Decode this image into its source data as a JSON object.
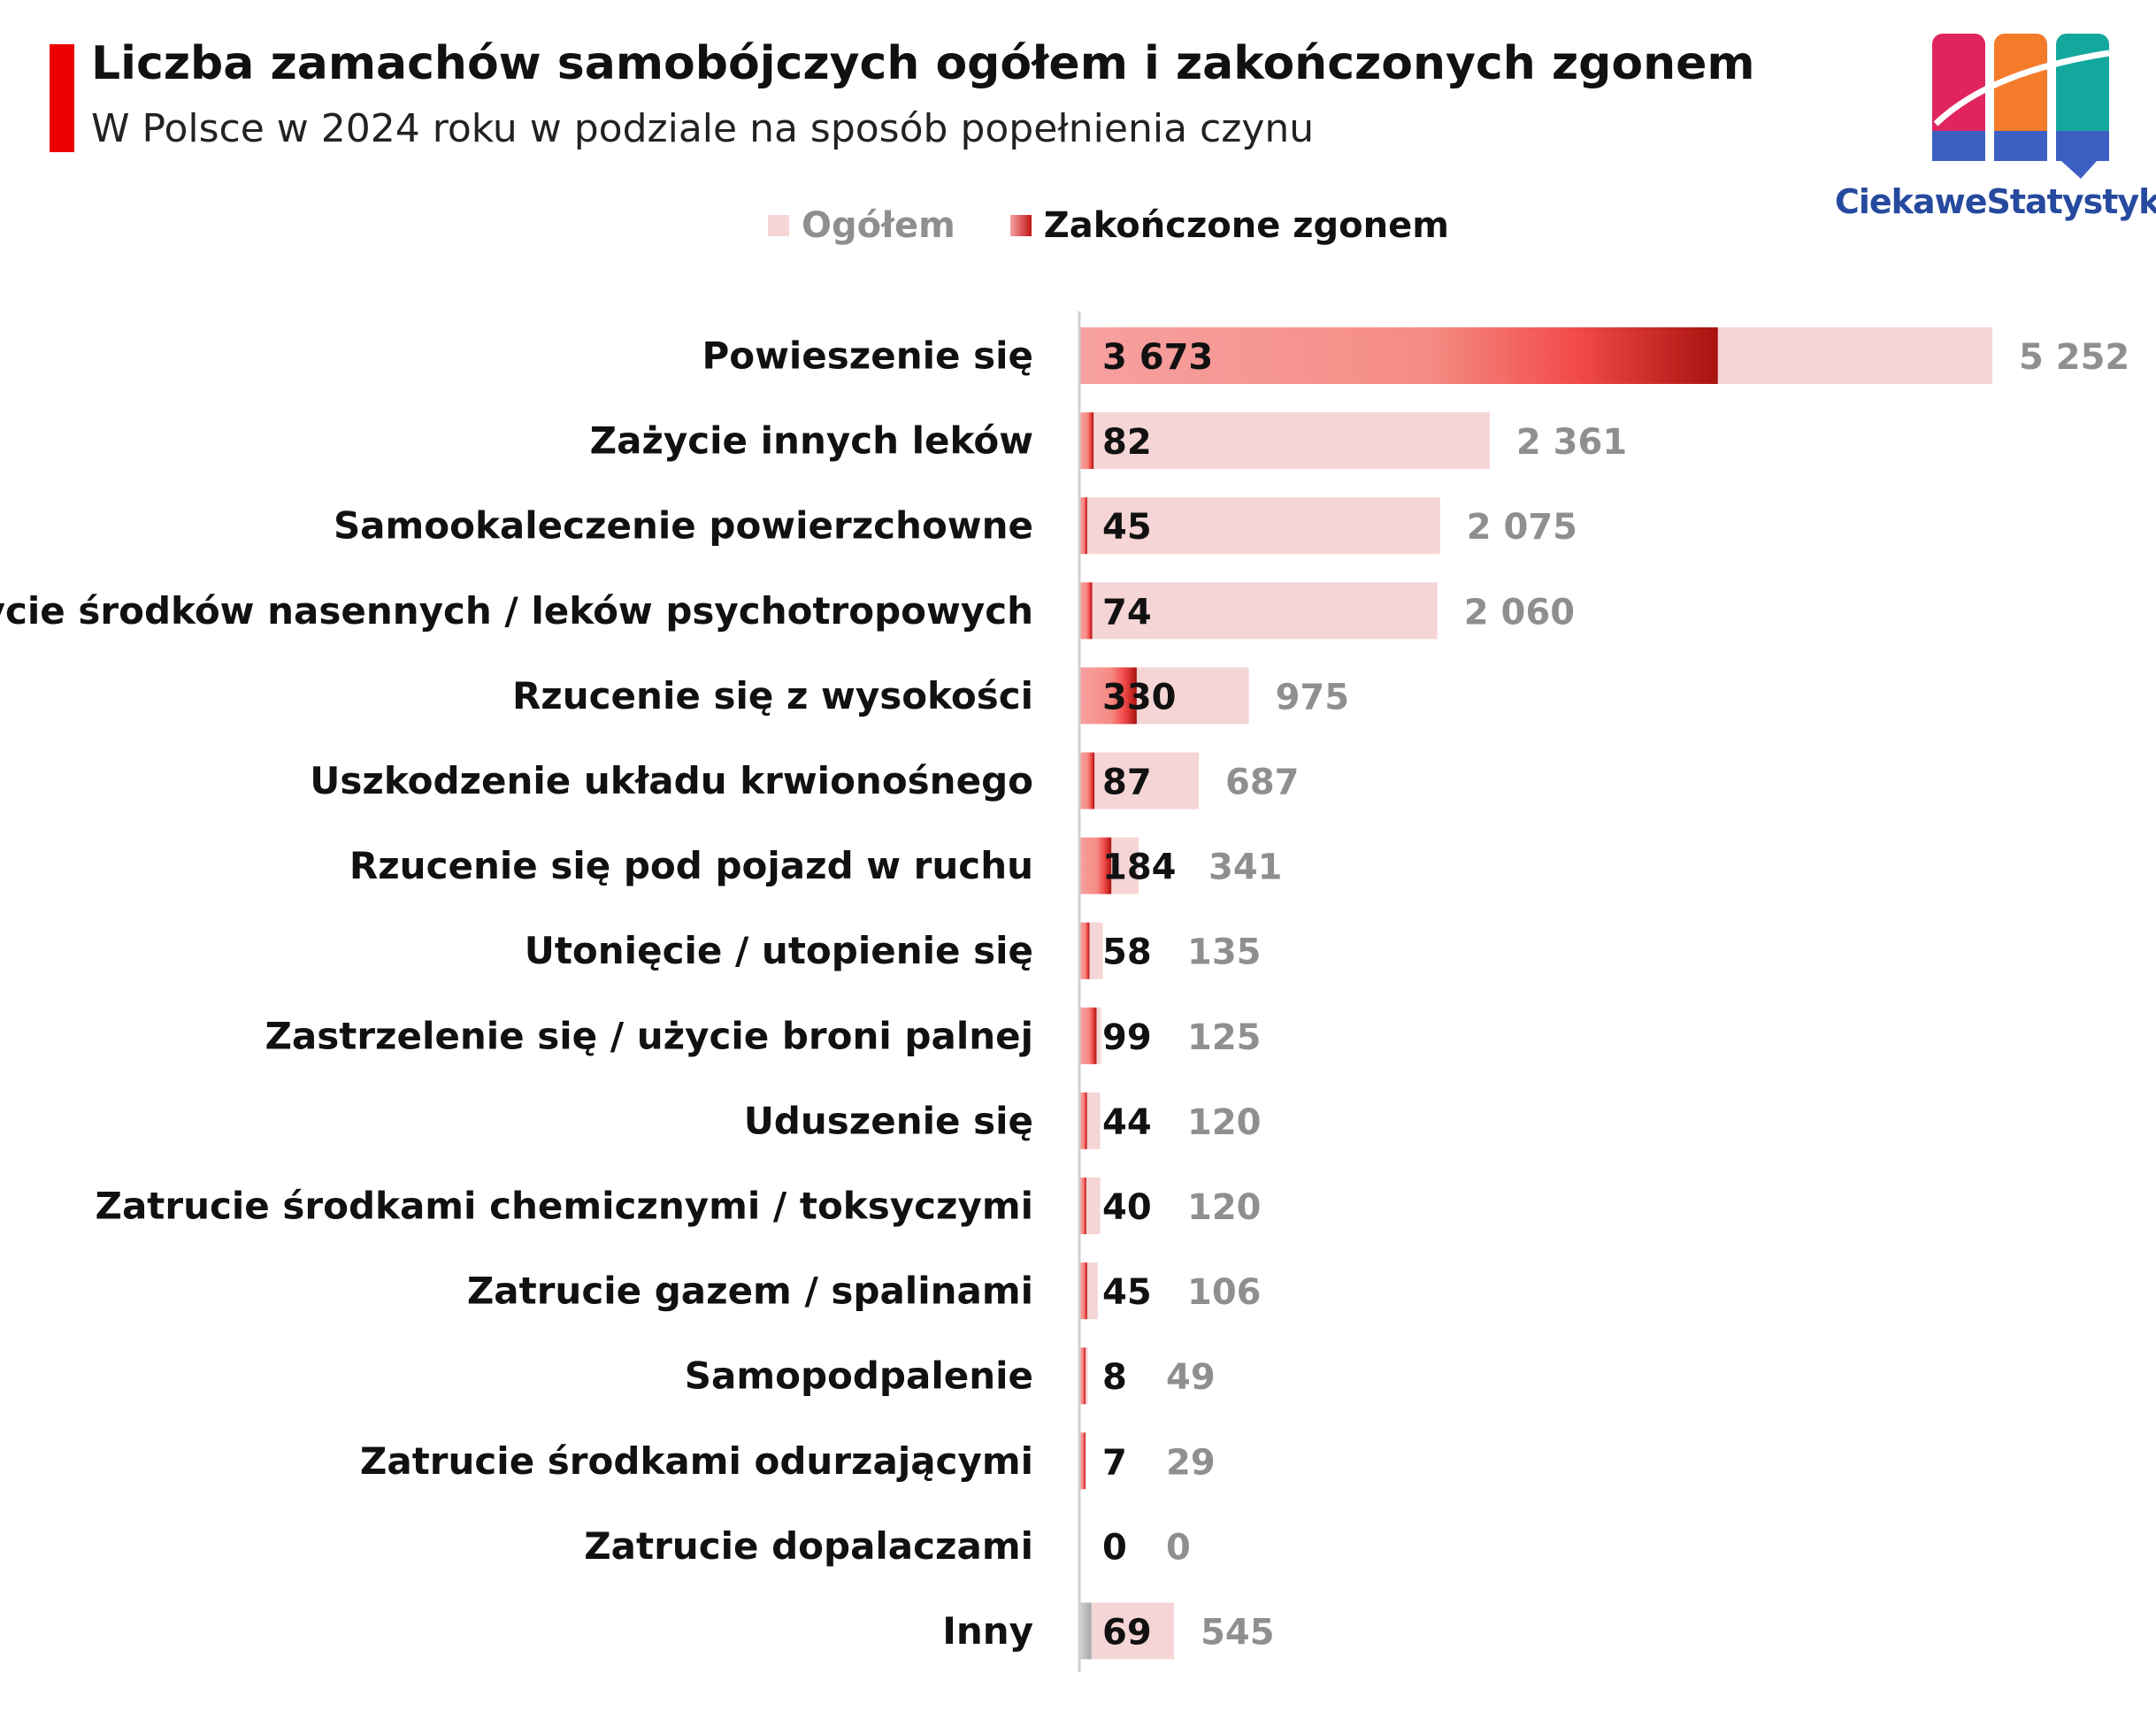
{
  "title": "Liczba zamachów samobójczych ogółem i zakończonych zgonem",
  "subtitle": "W Polsce w 2024 roku w podziale na sposób popełnienia czynu",
  "legend": {
    "total": "Ogółem",
    "fatal": "Zakończone zgonem"
  },
  "brand": {
    "name": "CiekaweStatystyki.pl",
    "logo_colors": [
      "#e0245e",
      "#f47b2a",
      "#13a89e",
      "#3d5fc4"
    ]
  },
  "colors": {
    "accent": "#ee0000",
    "total_bar": "#f5d5d5",
    "fatal_light": "#f7a1a1",
    "fatal_mid": "#f24a4a",
    "fatal_dark": "#a8120e",
    "other_fatal": "#a8a8a8",
    "total_label": "#8f8f8f",
    "fatal_label": "#111111"
  },
  "chart_data": {
    "type": "bar",
    "orientation": "horizontal",
    "title": "Liczba zamachów samobójczych ogółem i zakończonych zgonem",
    "subtitle": "W Polsce w 2024 roku w podziale na sposób popełnienia czynu",
    "categories": [
      "Powieszenie się",
      "Zażycie innych leków",
      "Samookaleczenie powierzchowne",
      "Zażycie środków nasennych / leków psychotropowych",
      "Rzucenie się z wysokości",
      "Uszkodzenie układu krwionośnego",
      "Rzucenie się pod pojazd w ruchu",
      "Utonięcie / utopienie się",
      "Zastrzelenie się / użycie broni palnej",
      "Uduszenie się",
      "Zatrucie środkami chemicznymi / toksyczymi",
      "Zatrucie gazem / spalinami",
      "Samopodpalenie",
      "Zatrucie środkami odurzającymi",
      "Zatrucie dopalaczami",
      "Inny"
    ],
    "series": [
      {
        "name": "Ogółem",
        "values": [
          5252,
          2361,
          2075,
          2060,
          975,
          687,
          341,
          135,
          125,
          120,
          120,
          106,
          49,
          29,
          0,
          545
        ]
      },
      {
        "name": "Zakończone zgonem",
        "values": [
          3673,
          82,
          45,
          74,
          330,
          87,
          184,
          58,
          99,
          44,
          40,
          45,
          8,
          7,
          0,
          69
        ]
      }
    ],
    "value_labels": {
      "total": [
        "5 252",
        "2 361",
        "2 075",
        "2 060",
        "975",
        "687",
        "341",
        "135",
        "125",
        "120",
        "120",
        "106",
        "49",
        "29",
        "0",
        "545"
      ],
      "fatal": [
        "3 673",
        "82",
        "45",
        "74",
        "330",
        "87",
        "184",
        "58",
        "99",
        "44",
        "40",
        "45",
        "8",
        "7",
        "0",
        "69"
      ]
    },
    "xlim": [
      0,
      5252
    ],
    "grid": false,
    "legend_position": "top"
  }
}
